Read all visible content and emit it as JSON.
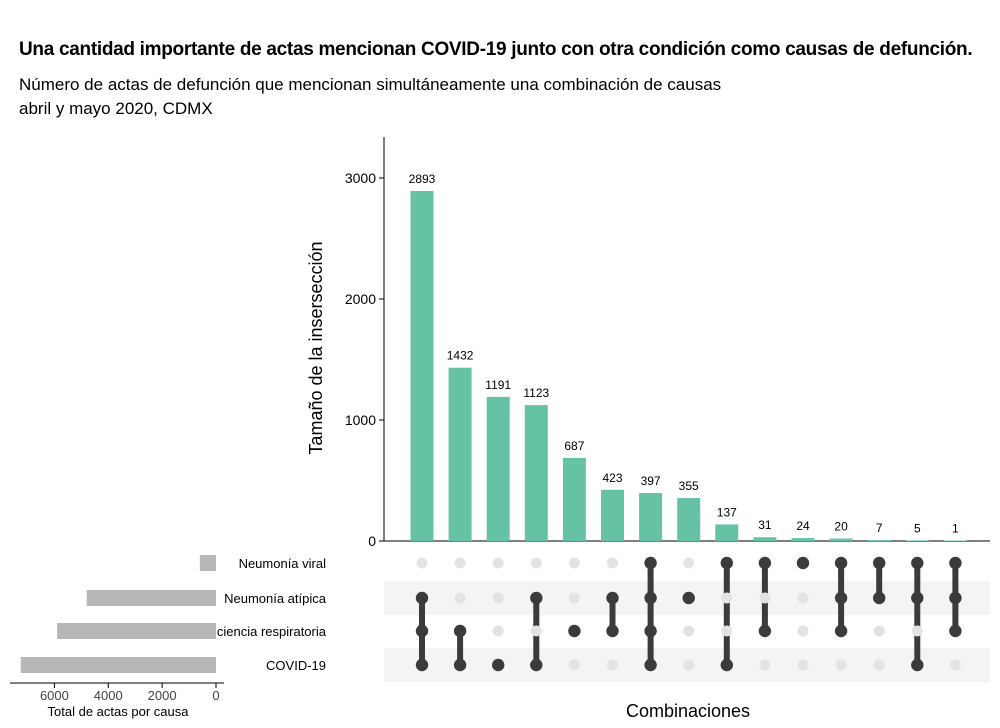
{
  "chart_data": {
    "type": "bar",
    "title": "Una cantidad importante de actas mencionan COVID-19 junto con otra condición como causas de defunción.",
    "subtitle_lines": [
      "Número de actas de defunción que mencionan simultáneamente una combinación de causas",
      "abril y mayo 2020, CDMX"
    ],
    "ylabel": "Tamaño de la insersección",
    "xlabel": "Combinaciones",
    "ylim": [
      0,
      3350
    ],
    "yticks": [
      0,
      1000,
      2000,
      3000
    ],
    "bar_color": "#66c2a5",
    "values": [
      2893,
      1432,
      1191,
      1123,
      687,
      423,
      397,
      355,
      137,
      31,
      24,
      20,
      7,
      5,
      1
    ],
    "sets": [
      "Neumonía viral",
      "Neumonía atípica",
      "Insuficiencia respiratoria",
      "COVID-19"
    ],
    "memberships": [
      [
        1,
        2,
        3
      ],
      [
        2,
        3
      ],
      [
        3
      ],
      [
        1,
        3
      ],
      [
        2
      ],
      [
        1,
        2
      ],
      [
        0,
        1,
        2,
        3
      ],
      [
        1
      ],
      [
        0,
        3
      ],
      [
        0,
        2
      ],
      [
        0
      ],
      [
        0,
        1,
        2
      ],
      [
        0,
        1
      ],
      [
        0,
        1,
        3
      ],
      [
        0,
        1,
        2
      ]
    ],
    "set_totals": {
      "xlabel": "Total de actas por causa",
      "xticks": [
        6000,
        4000,
        2000,
        0
      ],
      "xmax": 7500,
      "bar_color": "#b7b7b7",
      "values": [
        600,
        4800,
        5900,
        7250
      ]
    },
    "dot_active_color": "#3b3b3b",
    "dot_inactive_color": "#e3e3e3",
    "row_stripe_color": "#f4f4f4"
  }
}
